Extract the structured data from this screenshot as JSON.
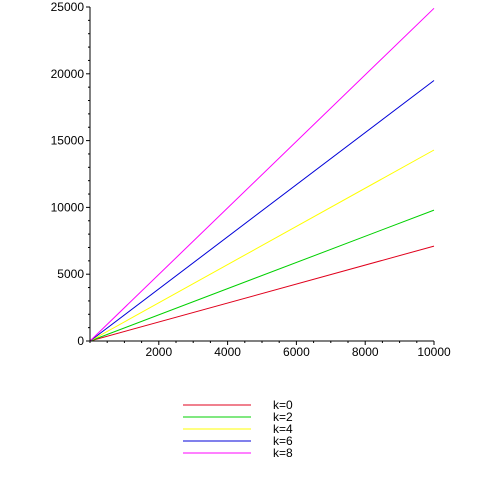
{
  "chart_data": {
    "type": "line",
    "title": "",
    "xlabel": "",
    "ylabel": "",
    "xlim": [
      0,
      10000
    ],
    "ylim": [
      0,
      25000
    ],
    "x_ticks": [
      2000,
      4000,
      6000,
      8000,
      10000
    ],
    "y_ticks": [
      0,
      5000,
      10000,
      15000,
      20000,
      25000
    ],
    "grid": false,
    "legend_position": "bottom",
    "series": [
      {
        "name": "k=0",
        "color": "#e0001c",
        "x": [
          0,
          10000
        ],
        "y": [
          0,
          7100
        ]
      },
      {
        "name": "k=2",
        "color": "#00d000",
        "x": [
          0,
          10000
        ],
        "y": [
          0,
          9800
        ]
      },
      {
        "name": "k=4",
        "color": "#ffff00",
        "x": [
          0,
          10000
        ],
        "y": [
          0,
          14300
        ]
      },
      {
        "name": "k=6",
        "color": "#0000d8",
        "x": [
          0,
          10000
        ],
        "y": [
          0,
          19500
        ]
      },
      {
        "name": "k=8",
        "color": "#ff00ff",
        "x": [
          0,
          10000
        ],
        "y": [
          0,
          24900
        ]
      }
    ]
  }
}
